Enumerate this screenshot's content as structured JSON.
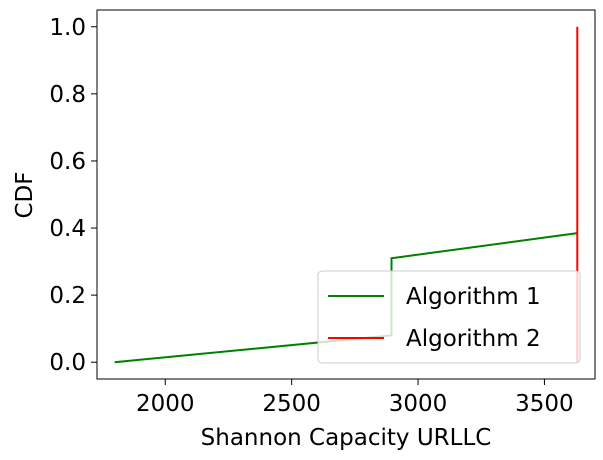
{
  "chart_data": {
    "type": "line",
    "xlabel": "Shannon Capacity URLLC",
    "ylabel": "CDF",
    "xlim": [
      1730,
      3700
    ],
    "ylim": [
      -0.05,
      1.05
    ],
    "xticks": [
      2000,
      2500,
      3000,
      3500
    ],
    "yticks": [
      0.0,
      0.2,
      0.4,
      0.6,
      0.8,
      1.0
    ],
    "ytick_labels": [
      "0.0",
      "0.2",
      "0.4",
      "0.6",
      "0.8",
      "1.0"
    ],
    "grid": false,
    "legend_position": "lower-right",
    "series": [
      {
        "name": "Algorithm 1",
        "color": "#008000",
        "x": [
          1800,
          2895,
          2895,
          3630
        ],
        "y": [
          0.0,
          0.08,
          0.31,
          0.385
        ]
      },
      {
        "name": "Algorithm 2",
        "color": "#ff0000",
        "x": [
          3630,
          3630
        ],
        "y": [
          0.0,
          1.0
        ]
      }
    ]
  }
}
